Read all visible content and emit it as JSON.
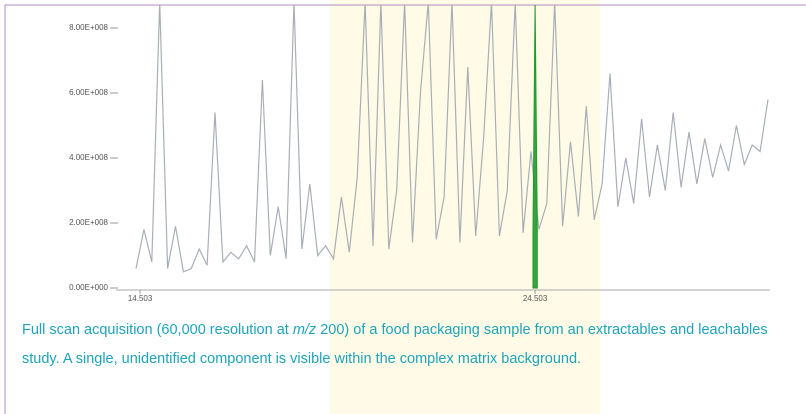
{
  "chart_data": {
    "type": "line",
    "caption": [
      "Full scan acquisition (60,000 resolution at ",
      "m/z",
      " 200) of a food packaging sample from an extractables and leachables study. A single, unidentified component is visible within the complex matrix background."
    ],
    "x": [
      14.4,
      14.6,
      14.8,
      15.0,
      15.2,
      15.4,
      15.6,
      15.8,
      16.0,
      16.2,
      16.4,
      16.6,
      16.8,
      17.0,
      17.2,
      17.4,
      17.6,
      17.8,
      18.0,
      18.2,
      18.4,
      18.6,
      18.8,
      19.0,
      19.2,
      19.4,
      19.6,
      19.8,
      20.0,
      20.2,
      20.4,
      20.6,
      20.8,
      21.0,
      21.2,
      21.4,
      21.6,
      21.8,
      22.0,
      22.2,
      22.4,
      22.6,
      22.8,
      23.0,
      23.2,
      23.4,
      23.6,
      23.8,
      24.0,
      24.2,
      24.4,
      24.6,
      24.8,
      25.0,
      25.2,
      25.4,
      25.6,
      25.8,
      26.0,
      26.2,
      26.4,
      26.6,
      26.8,
      27.0,
      27.2,
      27.4,
      27.6,
      27.8,
      28.0,
      28.2,
      28.4,
      28.6,
      28.8,
      29.0,
      29.2,
      29.4,
      29.6,
      29.8,
      30.0,
      30.2,
      30.4
    ],
    "series": [
      {
        "color": "#a9afb8",
        "values": [
          60000000.0,
          180000000.0,
          80000000.0,
          880000000.0,
          60000000.0,
          190000000.0,
          50000000.0,
          60000000.0,
          120000000.0,
          70000000.0,
          540000000.0,
          80000000.0,
          110000000.0,
          90000000.0,
          130000000.0,
          80000000.0,
          640000000.0,
          100000000.0,
          250000000.0,
          90000000.0,
          880000000.0,
          120000000.0,
          320000000.0,
          100000000.0,
          130000000.0,
          90000000.0,
          280000000.0,
          110000000.0,
          340000000.0,
          880000000.0,
          130000000.0,
          880000000.0,
          120000000.0,
          300000000.0,
          880000000.0,
          140000000.0,
          600000000.0,
          880000000.0,
          150000000.0,
          280000000.0,
          880000000.0,
          140000000.0,
          680000000.0,
          160000000.0,
          460000000.0,
          880000000.0,
          160000000.0,
          300000000.0,
          880000000.0,
          170000000.0,
          420000000.0,
          180000000.0,
          260000000.0,
          880000000.0,
          190000000.0,
          450000000.0,
          220000000.0,
          560000000.0,
          210000000.0,
          320000000.0,
          660000000.0,
          250000000.0,
          400000000.0,
          260000000.0,
          520000000.0,
          280000000.0,
          440000000.0,
          300000000.0,
          540000000.0,
          310000000.0,
          480000000.0,
          320000000.0,
          460000000.0,
          340000000.0,
          440000000.0,
          360000000.0,
          500000000.0,
          380000000.0,
          440000000.0,
          420000000.0,
          580000000.0
        ]
      },
      {
        "color": "#1f9a2e",
        "fill": true,
        "x": [
          24.45,
          24.503,
          24.56
        ],
        "values": [
          180000000.0,
          880000000.0,
          180000000.0
        ]
      }
    ],
    "xlim": [
      14.4,
      30.45
    ],
    "xticks": [
      14.503,
      24.503
    ],
    "ylim": [
      0,
      870000000.0
    ],
    "yticks": [
      {
        "value": 0,
        "label": "0.00E+000"
      },
      {
        "value": 200000000.0,
        "label": "2.00E+008"
      },
      {
        "value": 400000000.0,
        "label": "4.00E+008"
      },
      {
        "value": 600000000.0,
        "label": "6.00E+008"
      },
      {
        "value": 800000000.0,
        "label": "8.00E+008"
      }
    ]
  }
}
